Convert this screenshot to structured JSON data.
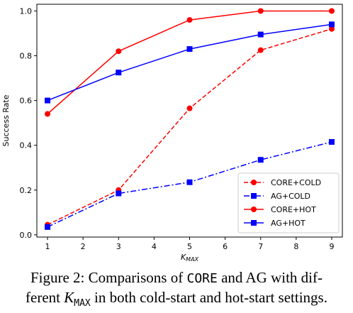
{
  "chart_data": {
    "type": "line",
    "x": [
      1,
      3,
      5,
      7,
      9
    ],
    "xticks": [
      "1",
      "2",
      "3",
      "4",
      "5",
      "6",
      "7",
      "8",
      "9"
    ],
    "yticks": [
      "0.0",
      "0.2",
      "0.4",
      "0.6",
      "0.8",
      "1.0"
    ],
    "xlabel_main": "K",
    "xlabel_sub": "MAX",
    "ylabel": "Success Rate",
    "xlim": [
      0.7,
      9.3
    ],
    "ylim": [
      -0.01,
      1.03
    ],
    "grid": false,
    "legend_position": "lower-right",
    "series": [
      {
        "name": "CORE+COLD",
        "values": [
          0.045,
          0.2,
          0.565,
          0.825,
          0.92
        ],
        "color": "#ff0000",
        "marker": "circle",
        "dash": "dashed"
      },
      {
        "name": "AG+COLD",
        "values": [
          0.035,
          0.185,
          0.235,
          0.335,
          0.415
        ],
        "color": "#0000ff",
        "marker": "square",
        "dash": "dashdot"
      },
      {
        "name": "CORE+HOT",
        "values": [
          0.54,
          0.82,
          0.96,
          1.0,
          1.0
        ],
        "color": "#ff0000",
        "marker": "circle",
        "dash": "solid"
      },
      {
        "name": "AG+HOT",
        "values": [
          0.6,
          0.725,
          0.83,
          0.895,
          0.94
        ],
        "color": "#0000ff",
        "marker": "square",
        "dash": "solid"
      }
    ]
  },
  "caption": {
    "prefix": "Figure 2: Comparisons of ",
    "core": "CORE",
    "middle": " and AG with dif-",
    "line2_prefix": "ferent ",
    "k": "K",
    "kmax_sub": "MAX",
    "line2_suffix": " in both cold-start and hot-start settings."
  }
}
